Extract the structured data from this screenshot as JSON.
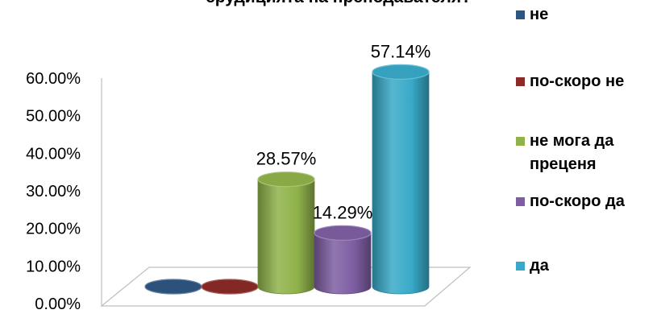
{
  "chart_data": {
    "type": "bar",
    "title": "ерудицията на преподавателя?",
    "categories": [
      "не",
      "по-скоро не",
      "не мога да преценя",
      "по-скоро да",
      "да"
    ],
    "legend": {
      "position": "right",
      "entries": [
        {
          "lines": [
            "не"
          ]
        },
        {
          "lines": [
            "по-скоро не"
          ]
        },
        {
          "lines": [
            "не мога да",
            "преценя"
          ]
        },
        {
          "lines": [
            "по-скоро да"
          ]
        },
        {
          "lines": [
            "да"
          ]
        }
      ]
    },
    "values": [
      0,
      0,
      28.57,
      14.29,
      57.14
    ],
    "value_labels": [
      "",
      "",
      "28.57%",
      "14.29%",
      "57.14%"
    ],
    "colors": [
      "#2E5683",
      "#8B2A27",
      "#8FB24A",
      "#7E5EA2",
      "#38A9C8"
    ],
    "yticks": [
      "0.00%",
      "10.00%",
      "20.00%",
      "30.00%",
      "40.00%",
      "50.00%",
      "60.00%"
    ],
    "ylim": [
      0,
      60
    ],
    "grid": false,
    "style": "3d-cylinder"
  }
}
